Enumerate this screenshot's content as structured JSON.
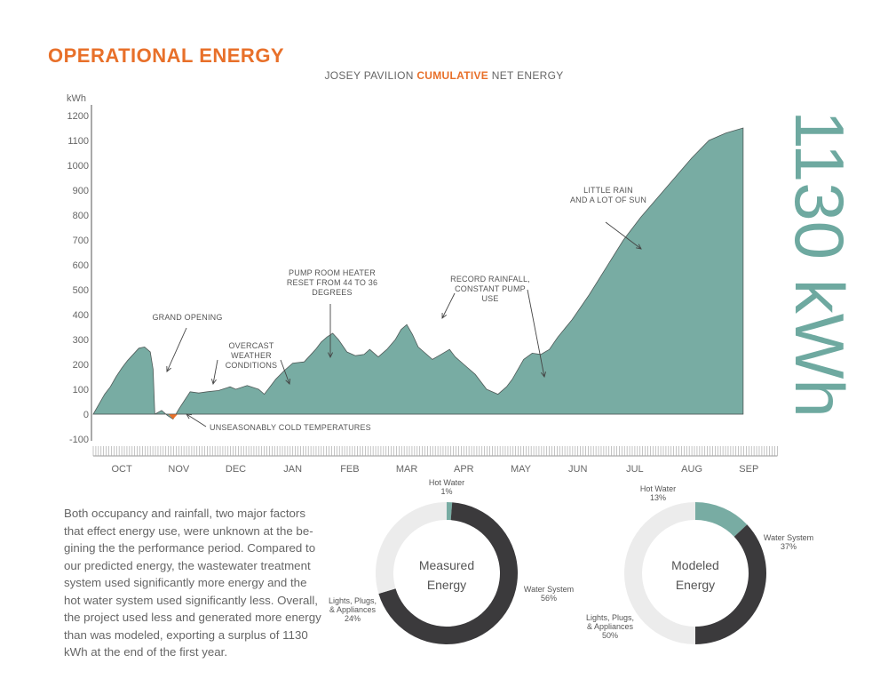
{
  "heading": "OPERATIONAL ENERGY",
  "subtitle": {
    "prefix": "JOSEY PAVILION",
    "accent": "CUMULATIVE",
    "suffix": "NET ENERGY"
  },
  "colors": {
    "area": "#78aca3",
    "negative": "#e8702a",
    "heading": "#e8702a",
    "dark": "#3b3a3c",
    "light": "#ececec",
    "teal": "#78aca3"
  },
  "chart_data": [
    {
      "type": "area",
      "title": "JOSEY PAVILION CUMULATIVE NET ENERGY",
      "ylabel": "kWh",
      "xlabel": "",
      "ylim": [
        -100,
        1200
      ],
      "yticks": [
        1200,
        1100,
        1000,
        900,
        800,
        700,
        600,
        500,
        400,
        300,
        200,
        100,
        0,
        -100
      ],
      "categories": [
        "OCT",
        "NOV",
        "DEC",
        "JAN",
        "FEB",
        "MAR",
        "APR",
        "MAY",
        "JUN",
        "JUL",
        "AUG",
        "SEP"
      ],
      "x_unit": "month index (0 = start of OCT)",
      "series": [
        {
          "x": [
            0,
            0.1,
            0.2,
            0.3,
            0.4,
            0.5,
            0.6,
            0.7,
            0.8,
            0.9,
            1.0,
            1.05,
            1.08,
            1.12,
            1.2,
            1.3,
            1.4,
            1.5,
            1.6,
            1.7,
            1.85,
            2.0,
            2.2,
            2.4,
            2.5,
            2.7,
            2.9,
            3.0,
            3.1,
            3.2,
            3.35,
            3.5,
            3.7,
            3.9,
            4.0,
            4.1,
            4.2,
            4.3,
            4.45,
            4.6,
            4.75,
            4.85,
            5.0,
            5.15,
            5.3,
            5.4,
            5.5,
            5.6,
            5.7,
            5.8,
            5.95,
            6.1,
            6.25,
            6.35,
            6.5,
            6.7,
            6.9,
            7.1,
            7.25,
            7.35,
            7.45,
            7.55,
            7.7,
            7.85,
            8.0,
            8.15,
            8.4,
            8.7,
            9.0,
            9.3,
            9.6,
            9.9,
            10.2,
            10.5,
            10.8,
            11.1,
            11.4
          ],
          "y": [
            0,
            40,
            80,
            110,
            150,
            185,
            215,
            240,
            265,
            270,
            250,
            180,
            0,
            5,
            15,
            -5,
            -20,
            20,
            55,
            90,
            85,
            90,
            95,
            110,
            100,
            115,
            100,
            80,
            110,
            140,
            175,
            205,
            210,
            260,
            290,
            310,
            325,
            300,
            250,
            235,
            240,
            260,
            230,
            260,
            300,
            340,
            360,
            320,
            270,
            250,
            220,
            240,
            260,
            230,
            200,
            160,
            100,
            80,
            110,
            140,
            180,
            220,
            245,
            240,
            260,
            310,
            380,
            480,
            590,
            700,
            790,
            870,
            950,
            1030,
            1100,
            1130,
            1150
          ]
        }
      ],
      "total_label": "1130 kWh",
      "annotations": [
        {
          "text": "GRAND OPENING"
        },
        {
          "text": "OVERCAST\nWEATHER\nCONDITIONS"
        },
        {
          "text": "PUMP ROOM HEATER\nRESET FROM 44 TO 36\nDEGREES"
        },
        {
          "text": "RECORD RAINFALL,\nCONSTANT PUMP\nUSE"
        },
        {
          "text": "LITTLE RAIN\nAND A LOT OF SUN"
        },
        {
          "text": "UNSEASONABLY COLD TEMPERATURES"
        }
      ]
    },
    {
      "type": "pie",
      "title": "Measured Energy",
      "slices": [
        {
          "label": "Water System",
          "value": 56,
          "pct": "56%",
          "color": "#3b3a3c"
        },
        {
          "label": "Lights, Plugs, & Appliances",
          "value": 24,
          "pct": "24%",
          "color": "#ececec"
        },
        {
          "label": "Hot Water",
          "value": 1,
          "pct": "1%",
          "color": "#78aca3"
        }
      ]
    },
    {
      "type": "pie",
      "title": "Modeled Energy",
      "slices": [
        {
          "label": "Water System",
          "value": 37,
          "pct": "37%",
          "color": "#3b3a3c"
        },
        {
          "label": "Lights, Plugs, & Appliances",
          "value": 50,
          "pct": "50%",
          "color": "#ececec"
        },
        {
          "label": "Hot Water",
          "value": 13,
          "pct": "13%",
          "color": "#78aca3"
        }
      ]
    }
  ],
  "summary": "Both occupancy and rainfall, two major factors that effect energy use, were unknown at the be-gining the the performance period. Compared to our predicted energy, the wastewater treatment system used significantly more energy and the hot water system used significantly less. Overall, the project used less and generated more energy than was modeled, exporting a surplus of 1130 kWh at the end of the first year."
}
